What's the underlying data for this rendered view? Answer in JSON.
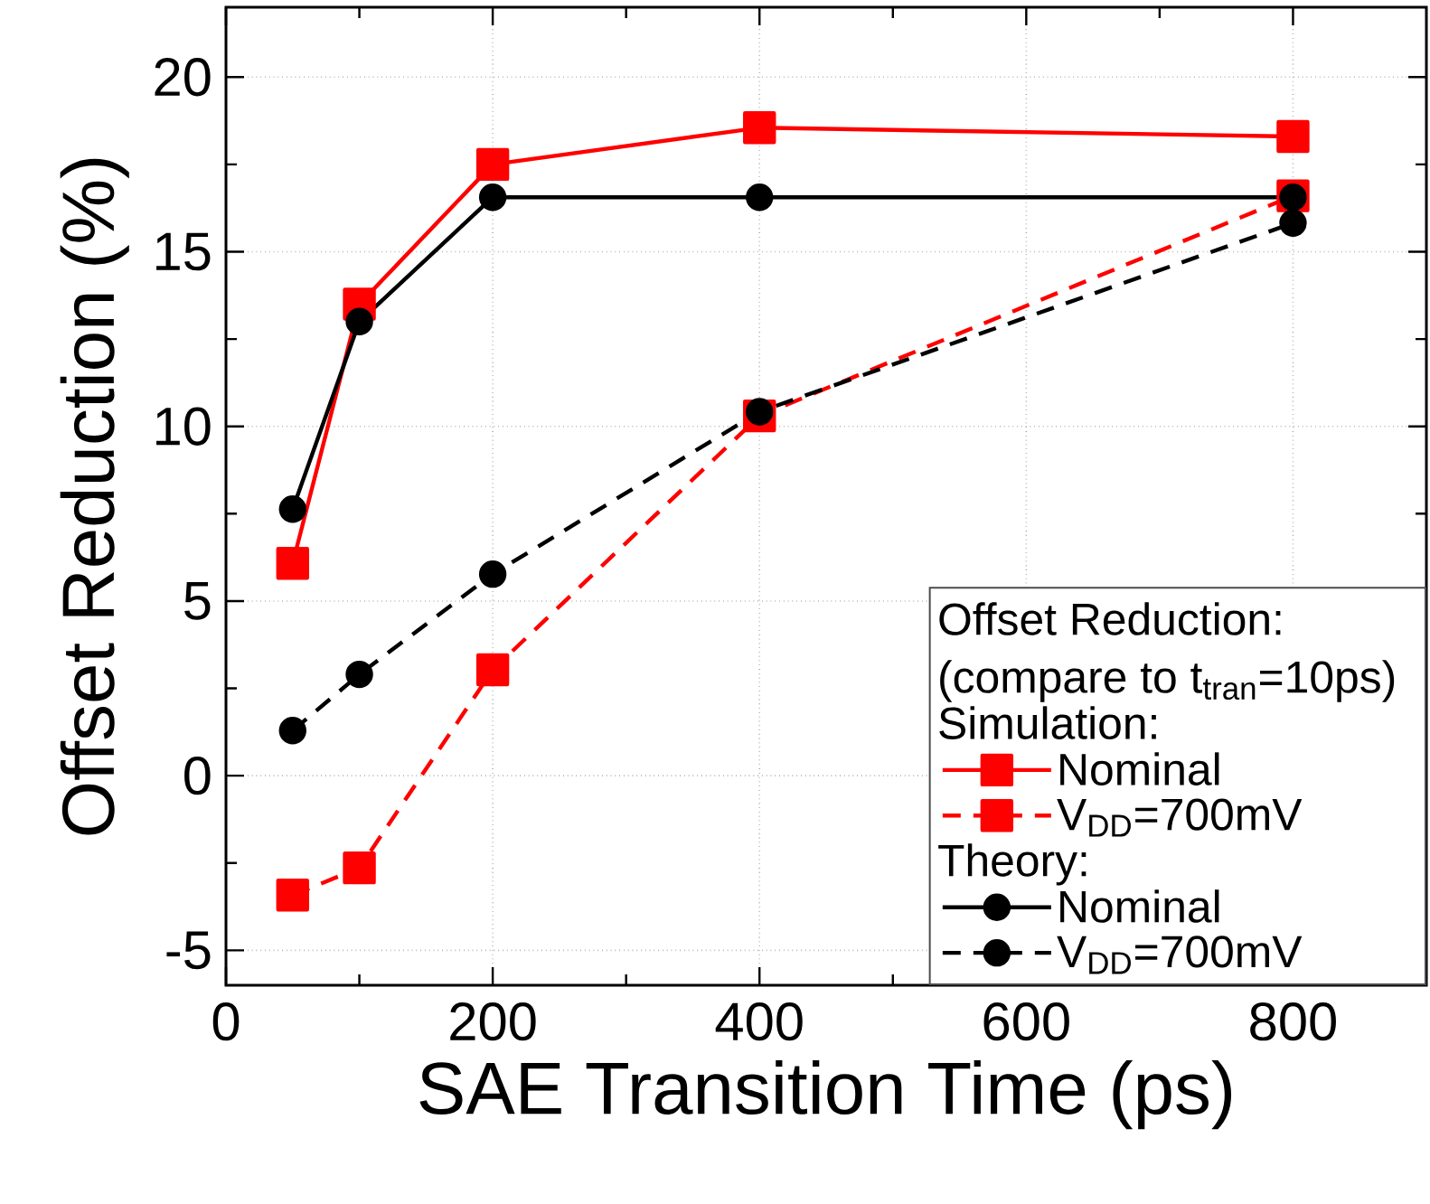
{
  "chart_data": {
    "type": "line",
    "xlabel": "SAE Transition Time (ps)",
    "ylabel": "Offset Reduction (%)",
    "legend_title": "Offset Reduction: (compare to t$_{tran}$=10ps)",
    "annotations": [
      "Simulation:",
      "Theory:"
    ],
    "x": [
      50,
      100,
      200,
      400,
      800
    ],
    "xlim": [
      0,
      900
    ],
    "ylim": [
      -6,
      22
    ],
    "xticks": [
      0,
      200,
      400,
      600,
      800
    ],
    "yticks": [
      -5,
      0,
      5,
      10,
      15,
      20
    ],
    "grid": true,
    "legend": "bottom right",
    "series": [
      {
        "name": "Nominal",
        "color": "#ff0000",
        "marker": "square",
        "line_style": "solid",
        "values": [
          6.08,
          13.5,
          17.5,
          18.55,
          18.3
        ]
      },
      {
        "name": "V$_{DD}$=700mV",
        "color": "#ff0000",
        "marker": "square",
        "line_style": "dashed",
        "values": [
          -3.42,
          -2.64,
          3.03,
          10.3,
          16.6
        ]
      },
      {
        "name": "Nominal",
        "color": "#000000",
        "marker": "circle",
        "line_style": "solid",
        "values": [
          7.63,
          13.0,
          16.56,
          16.56,
          16.56
        ]
      },
      {
        "name": "V$_{DD}$=700mV",
        "color": "#000000",
        "marker": "circle",
        "line_style": "dashed",
        "values": [
          1.29,
          2.9,
          5.77,
          10.42,
          15.82
        ]
      }
    ]
  }
}
